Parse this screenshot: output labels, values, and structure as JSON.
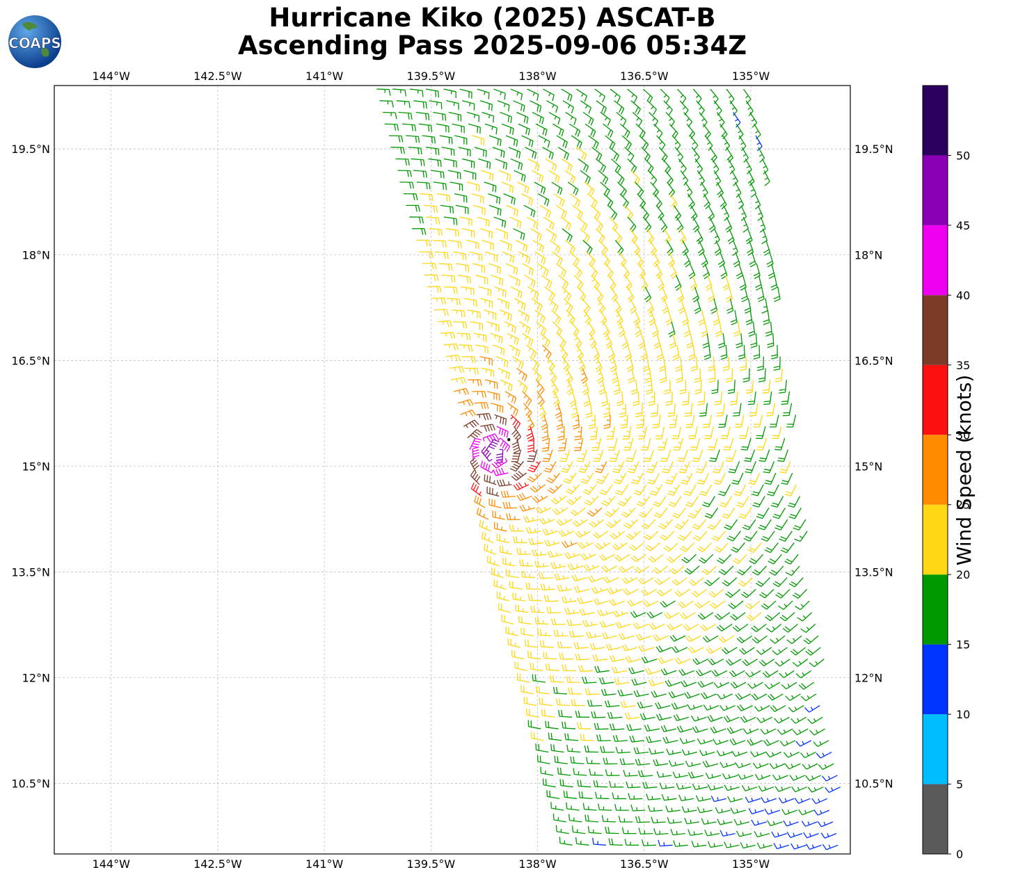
{
  "title": {
    "line1": "Hurricane Kiko (2025) ASCAT-B",
    "line2": "Ascending Pass 2025-09-06 05:34Z"
  },
  "logo": {
    "text": "COAPS",
    "icon": "globe-icon"
  },
  "map": {
    "lon_range": [
      -144.8,
      -133.6
    ],
    "lat_range": [
      9.5,
      20.4
    ],
    "lon_ticks": [
      {
        "value": -144.0,
        "label": "144°W"
      },
      {
        "value": -142.5,
        "label": "142.5°W"
      },
      {
        "value": -141.0,
        "label": "141°W"
      },
      {
        "value": -139.5,
        "label": "139.5°W"
      },
      {
        "value": -138.0,
        "label": "138°W"
      },
      {
        "value": -136.5,
        "label": "136.5°W"
      },
      {
        "value": -135.0,
        "label": "135°W"
      }
    ],
    "lat_ticks": [
      {
        "value": 19.5,
        "label": "19.5°N"
      },
      {
        "value": 18.0,
        "label": "18°N"
      },
      {
        "value": 16.5,
        "label": "16.5°N"
      },
      {
        "value": 15.0,
        "label": "15°N"
      },
      {
        "value": 13.5,
        "label": "13.5°N"
      },
      {
        "value": 12.0,
        "label": "12°N"
      },
      {
        "value": 10.5,
        "label": "10.5°N"
      }
    ],
    "gridlines": true,
    "storm_center": {
      "lon": -138.6,
      "lat": 15.2
    }
  },
  "colorbar": {
    "label": "Wind Speed (knots)",
    "bounds": [
      0,
      5,
      10,
      15,
      20,
      25,
      30,
      35,
      40,
      45,
      50,
      55
    ],
    "tick_labels": [
      "0",
      "5",
      "10",
      "15",
      "20",
      "25",
      "30",
      "35",
      "40",
      "45",
      "50"
    ],
    "colors": [
      "#5a5a5a",
      "#00bfff",
      "#0033ff",
      "#009900",
      "#ffd712",
      "#ff8c00",
      "#ff1010",
      "#7c3b28",
      "#f000f0",
      "#8a00b4",
      "#2c005e"
    ]
  }
}
